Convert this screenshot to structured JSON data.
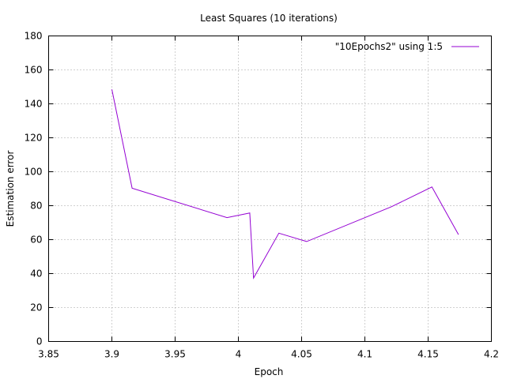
{
  "chart_data": {
    "type": "line",
    "title": "Least Squares (10 iterations)",
    "xlabel": "Epoch",
    "ylabel": "Estimation error",
    "xlim": [
      3.85,
      4.2
    ],
    "ylim": [
      0,
      180
    ],
    "x_ticks": [
      "3.85",
      "3.9",
      "3.95",
      "4",
      "4.05",
      "4.1",
      "4.15",
      "4.2"
    ],
    "y_ticks": [
      "0",
      "20",
      "40",
      "60",
      "80",
      "100",
      "120",
      "140",
      "160",
      "180"
    ],
    "grid": true,
    "legend_position": "top-right",
    "series": [
      {
        "name": "\"10Epochs2\" using 1:5",
        "color": "#9400d3",
        "x": [
          3.9,
          3.916,
          3.991,
          4.009,
          4.012,
          4.032,
          4.054,
          4.121,
          4.153,
          4.174
        ],
        "y": [
          148.5,
          90.3,
          73.0,
          75.7,
          37.4,
          63.8,
          58.9,
          79.4,
          91.0,
          63.0
        ]
      }
    ]
  }
}
